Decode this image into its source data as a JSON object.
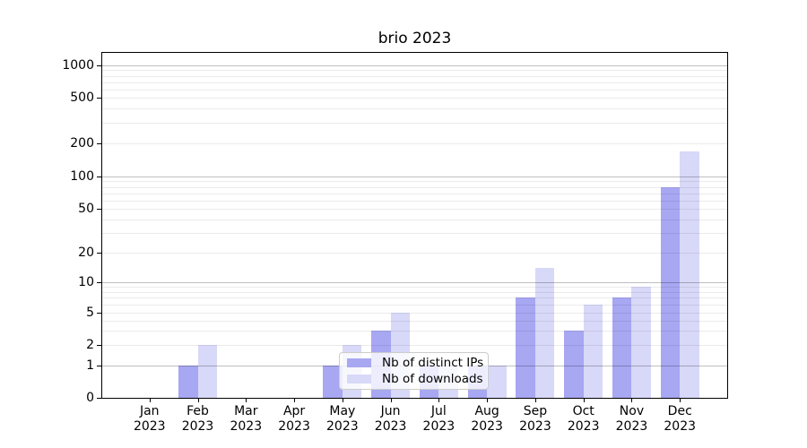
{
  "title": "brio 2023",
  "legend": {
    "items": [
      {
        "label": "Nb of distinct IPs",
        "color": "#a7a7f2"
      },
      {
        "label": "Nb of downloads",
        "color": "#d8d8f8"
      }
    ]
  },
  "axes": {
    "y_tick_labels": [
      "1000",
      "500",
      "200",
      "100",
      "50",
      "20",
      "10",
      "5",
      "2",
      "1",
      "0"
    ],
    "x_tick_line2": "2023"
  },
  "chart_data": {
    "type": "bar",
    "title": "brio 2023",
    "categories": [
      "Jan 2023",
      "Feb 2023",
      "Mar 2023",
      "Apr 2023",
      "May 2023",
      "Jun 2023",
      "Jul 2023",
      "Aug 2023",
      "Sep 2023",
      "Oct 2023",
      "Nov 2023",
      "Dec 2023"
    ],
    "series": [
      {
        "name": "Nb of distinct IPs",
        "color": "#a7a7f2",
        "values": [
          0,
          1,
          0,
          0,
          1,
          3,
          1,
          1,
          7,
          3,
          7,
          80
        ]
      },
      {
        "name": "Nb of downloads",
        "color": "#d8d8f8",
        "values": [
          0,
          2,
          0,
          0,
          2,
          5,
          1,
          1,
          14,
          6,
          9,
          170
        ]
      }
    ],
    "xlabel": "",
    "ylabel": "",
    "yscale": "symlog",
    "yticks": [
      0,
      1,
      2,
      5,
      10,
      20,
      50,
      100,
      200,
      500,
      1000
    ],
    "yticks_minor": [
      3,
      4,
      6,
      7,
      8,
      9,
      30,
      40,
      60,
      70,
      80,
      90,
      300,
      400,
      600,
      700,
      800,
      900
    ],
    "yticks_major_grid": [
      1,
      10,
      100,
      1000
    ],
    "ylim": [
      0,
      1300
    ],
    "grid": true,
    "legend_position": "lower center"
  },
  "colors": {
    "bar_ips": "#a7a7f2",
    "bar_downloads": "#d8d8f8",
    "grid_major": "#c0c0c0",
    "grid_minor": "#ebebeb",
    "axis": "#000000",
    "legend_edge": "#cccccc",
    "background": "#ffffff"
  }
}
